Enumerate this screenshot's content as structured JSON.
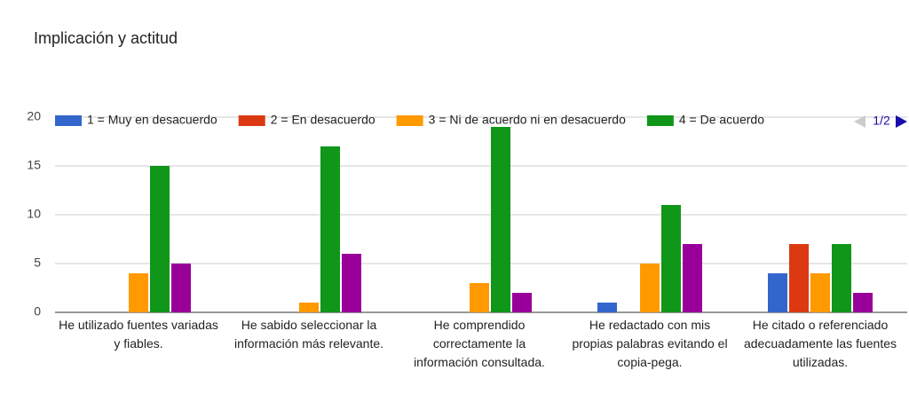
{
  "chart_data": {
    "type": "bar",
    "title": "Implicación y actitud",
    "categories": [
      "He utilizado fuentes variadas y fiables.",
      "He sabido seleccionar la información más relevante.",
      "He comprendido correctamente la información consultada.",
      "He redactado con mis propias palabras evitando el copia-pega.",
      "He citado o referenciado adecuadamente las fuentes utilizadas."
    ],
    "series": [
      {
        "name": "1 = Muy en desacuerdo",
        "color": "#3366cc",
        "values": [
          0,
          0,
          0,
          1,
          4
        ]
      },
      {
        "name": "2 = En desacuerdo",
        "color": "#dc3912",
        "values": [
          0,
          0,
          0,
          0,
          7
        ]
      },
      {
        "name": "3 = Ni de acuerdo ni en desacuerdo",
        "color": "#ff9900",
        "values": [
          4,
          1,
          3,
          5,
          4
        ]
      },
      {
        "name": "4 = De acuerdo",
        "color": "#109618",
        "values": [
          15,
          17,
          19,
          11,
          7
        ]
      },
      {
        "color": "#990099",
        "values": [
          5,
          6,
          2,
          7,
          2
        ]
      }
    ],
    "ylim": [
      0,
      20
    ],
    "yticks": [
      0,
      5,
      10,
      15,
      20
    ],
    "grid": true,
    "legend_position": "top",
    "legend_page": "1/2"
  }
}
